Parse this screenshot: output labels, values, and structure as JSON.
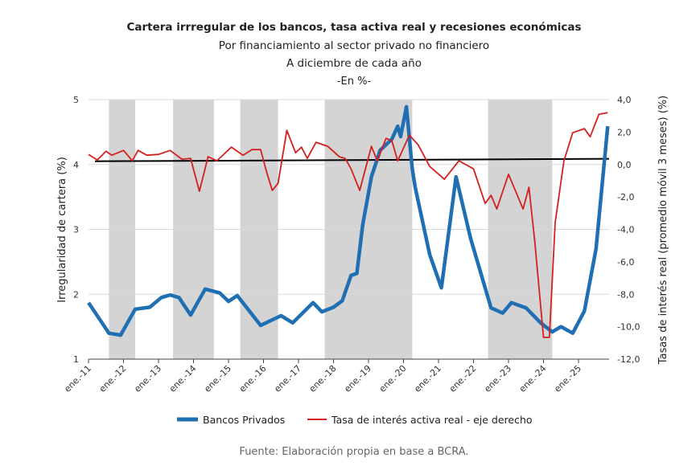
{
  "chart_data": {
    "type": "line",
    "title": "Cartera irrregular de los bancos, tasa activa real y recesiones económicas",
    "subtitles": [
      "Por financiamiento al sector privado no financiero",
      "A diciembre de cada año",
      "-En %-"
    ],
    "ylabel": "Irregularidad de cartera (%)",
    "y2label": "Tasas de interés real (promedio móvil 3 meses) (%)",
    "ylim": [
      1,
      5
    ],
    "y2lim": [
      -12,
      4
    ],
    "yticks": [
      "1",
      "2",
      "3",
      "4",
      "5"
    ],
    "y2ticks": [
      "-12,0",
      "-10,0",
      "-8,0",
      "-6,0",
      "-4,0",
      "-2,0",
      "0,0",
      "2,0",
      "4,0"
    ],
    "xticks": [
      "ene.-11",
      "ene.-12",
      "ene.-13",
      "ene.-14",
      "ene.-15",
      "ene.-16",
      "ene.-17",
      "ene.-18",
      "ene.-19",
      "ene.-20",
      "ene.-21",
      "ene.-22",
      "ene.-23",
      "ene.-24",
      "ene.-25"
    ],
    "grid": true,
    "legend_position": "bottom",
    "recessions": [
      [
        "2011-08",
        "2012-05"
      ],
      [
        "2013-06",
        "2014-08"
      ],
      [
        "2015-05",
        "2016-06"
      ],
      [
        "2017-10",
        "2020-04"
      ],
      [
        "2022-06",
        "2024-04"
      ]
    ],
    "reference_line": {
      "axis": "right",
      "from": 0.2,
      "to": 0.35,
      "color": "#000000"
    },
    "series": [
      {
        "name": "Bancos Privados",
        "axis": "left",
        "color": "#1f6fb2",
        "points": [
          [
            "2011-01",
            1.87
          ],
          [
            "2011-08",
            1.4
          ],
          [
            "2011-12",
            1.37
          ],
          [
            "2012-05",
            1.77
          ],
          [
            "2012-10",
            1.8
          ],
          [
            "2013-02",
            1.95
          ],
          [
            "2013-05",
            1.99
          ],
          [
            "2013-08",
            1.95
          ],
          [
            "2013-12",
            1.68
          ],
          [
            "2014-05",
            2.08
          ],
          [
            "2014-10",
            2.02
          ],
          [
            "2015-01",
            1.89
          ],
          [
            "2015-04",
            1.98
          ],
          [
            "2015-12",
            1.52
          ],
          [
            "2016-07",
            1.67
          ],
          [
            "2016-11",
            1.56
          ],
          [
            "2017-06",
            1.87
          ],
          [
            "2017-09",
            1.73
          ],
          [
            "2018-01",
            1.8
          ],
          [
            "2018-04",
            1.9
          ],
          [
            "2018-07",
            2.29
          ],
          [
            "2018-09",
            2.32
          ],
          [
            "2018-11",
            3.07
          ],
          [
            "2019-02",
            3.81
          ],
          [
            "2019-05",
            4.22
          ],
          [
            "2019-09",
            4.39
          ],
          [
            "2019-11",
            4.59
          ],
          [
            "2019-12",
            4.43
          ],
          [
            "2020-02",
            4.89
          ],
          [
            "2020-04",
            3.93
          ],
          [
            "2020-05",
            3.65
          ],
          [
            "2020-10",
            2.61
          ],
          [
            "2021-02",
            2.1
          ],
          [
            "2021-07",
            3.81
          ],
          [
            "2021-12",
            2.86
          ],
          [
            "2022-07",
            1.79
          ],
          [
            "2022-11",
            1.71
          ],
          [
            "2023-02",
            1.87
          ],
          [
            "2023-07",
            1.79
          ],
          [
            "2023-12",
            1.56
          ],
          [
            "2024-04",
            1.42
          ],
          [
            "2024-07",
            1.5
          ],
          [
            "2024-11",
            1.4
          ],
          [
            "2025-03",
            1.74
          ],
          [
            "2025-07",
            2.7
          ],
          [
            "2025-11",
            4.59
          ]
        ]
      },
      {
        "name": "Tasa de interés activa real - eje derecho",
        "axis": "right",
        "color": "#d42020",
        "points": [
          [
            "2011-01",
            0.62
          ],
          [
            "2011-04",
            0.28
          ],
          [
            "2011-07",
            0.82
          ],
          [
            "2011-09",
            0.57
          ],
          [
            "2012-01",
            0.87
          ],
          [
            "2012-04",
            0.23
          ],
          [
            "2012-06",
            0.87
          ],
          [
            "2012-09",
            0.57
          ],
          [
            "2013-01",
            0.62
          ],
          [
            "2013-05",
            0.87
          ],
          [
            "2013-09",
            0.33
          ],
          [
            "2013-12",
            0.38
          ],
          [
            "2014-03",
            -1.65
          ],
          [
            "2014-06",
            0.48
          ],
          [
            "2014-09",
            0.23
          ],
          [
            "2015-02",
            1.07
          ],
          [
            "2015-06",
            0.57
          ],
          [
            "2015-09",
            0.92
          ],
          [
            "2015-12",
            0.92
          ],
          [
            "2016-02",
            -0.42
          ],
          [
            "2016-04",
            -1.6
          ],
          [
            "2016-06",
            -1.16
          ],
          [
            "2016-09",
            2.11
          ],
          [
            "2016-12",
            0.72
          ],
          [
            "2017-02",
            1.07
          ],
          [
            "2017-04",
            0.38
          ],
          [
            "2017-07",
            1.37
          ],
          [
            "2017-11",
            1.12
          ],
          [
            "2018-03",
            0.48
          ],
          [
            "2018-05",
            0.38
          ],
          [
            "2018-07",
            -0.27
          ],
          [
            "2018-10",
            -1.6
          ],
          [
            "2019-02",
            1.12
          ],
          [
            "2019-04",
            0.23
          ],
          [
            "2019-07",
            1.61
          ],
          [
            "2019-09",
            1.47
          ],
          [
            "2019-11",
            0.23
          ],
          [
            "2020-03",
            1.81
          ],
          [
            "2020-06",
            1.22
          ],
          [
            "2020-10",
            -0.12
          ],
          [
            "2021-03",
            -0.91
          ],
          [
            "2021-08",
            0.23
          ],
          [
            "2022-01",
            -0.27
          ],
          [
            "2022-05",
            -2.4
          ],
          [
            "2022-07",
            -1.9
          ],
          [
            "2022-09",
            -2.74
          ],
          [
            "2023-01",
            -0.6
          ],
          [
            "2023-06",
            -2.74
          ],
          [
            "2023-08",
            -1.4
          ],
          [
            "2023-10",
            -4.72
          ],
          [
            "2024-01",
            -10.66
          ],
          [
            "2024-03",
            -10.66
          ],
          [
            "2024-05",
            -3.58
          ],
          [
            "2024-08",
            0.23
          ],
          [
            "2024-11",
            1.96
          ],
          [
            "2025-03",
            2.21
          ],
          [
            "2025-05",
            1.71
          ],
          [
            "2025-08",
            3.1
          ],
          [
            "2025-11",
            3.2
          ]
        ]
      }
    ],
    "source": "Fuente: Elaboración propia en base a BCRA."
  }
}
